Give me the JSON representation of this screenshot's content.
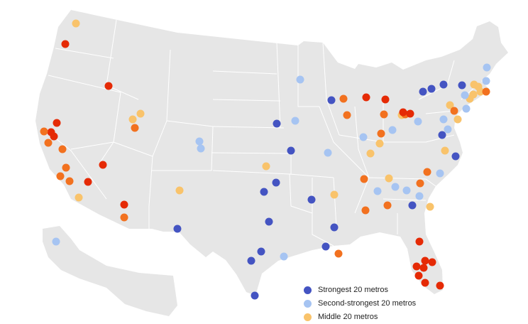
{
  "colors": {
    "background": "#ffffff",
    "land": "#e6e6e6",
    "borders": "#ffffff",
    "strongest": "#4454c2",
    "second_strongest": "#a6c4f2",
    "middle": "#f9c36b",
    "fourth": "#f2711f",
    "weakest": "#e52a05"
  },
  "legend": {
    "items": [
      {
        "category": "strongest",
        "label": "Strongest 20 metros"
      },
      {
        "category": "second_strongest",
        "label": "Second-strongest 20 metros"
      },
      {
        "category": "middle",
        "label": "Middle 20 metros"
      }
    ]
  },
  "map": {
    "region": "Contiguous United States, Alaska and Hawaii insets",
    "marker_shape": "circle"
  }
}
